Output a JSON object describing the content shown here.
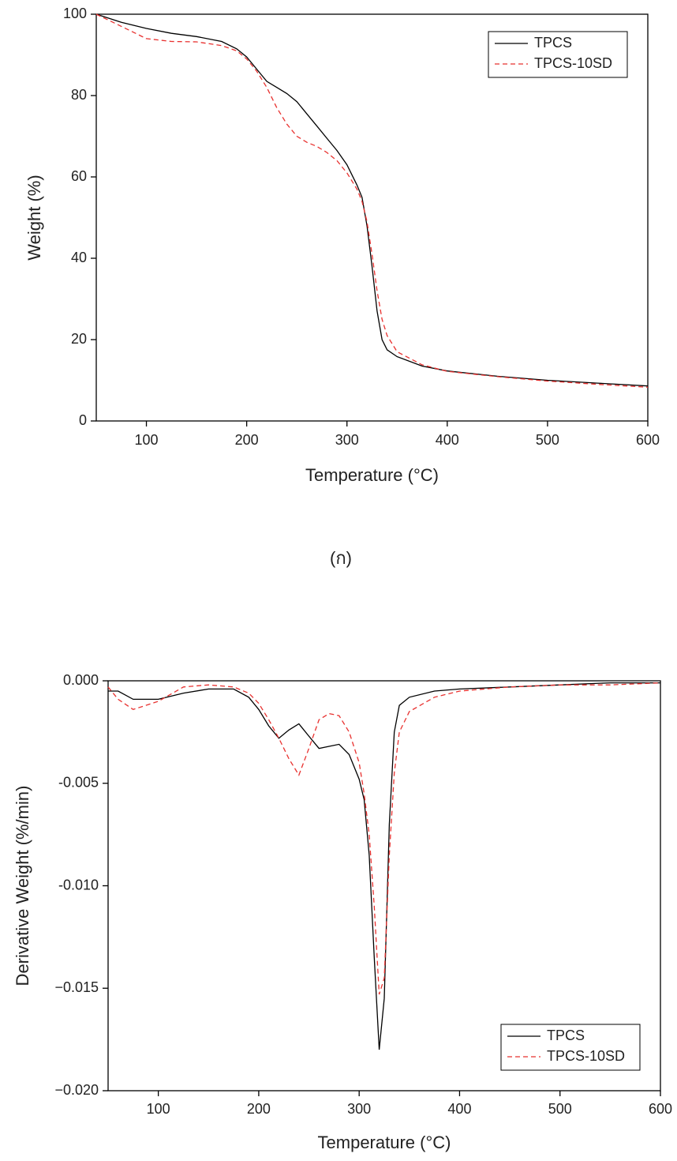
{
  "caption": "(ก)",
  "chart_data": [
    {
      "type": "line",
      "xlabel": "Temperature (°C)",
      "ylabel": "Weight (%)",
      "x": [
        50,
        75,
        100,
        125,
        150,
        175,
        190,
        200,
        210,
        220,
        230,
        240,
        250,
        260,
        270,
        280,
        290,
        300,
        310,
        315,
        320,
        325,
        330,
        335,
        340,
        350,
        375,
        400,
        450,
        500,
        550,
        600
      ],
      "series": [
        {
          "name": "TPCS",
          "color": "#000000",
          "linestyle": "solid",
          "values": [
            100,
            98,
            96.5,
            95.3,
            94.5,
            93.3,
            91.5,
            89.5,
            86.5,
            83.5,
            82,
            80.5,
            78.5,
            75.5,
            72.5,
            69.5,
            66.5,
            63,
            58,
            55,
            48,
            38,
            27,
            20,
            17.5,
            15.8,
            13.5,
            12.3,
            11,
            10,
            9.3,
            8.6
          ]
        },
        {
          "name": "TPCS-10SD",
          "color": "#e8312f",
          "linestyle": "dashed",
          "values": [
            100,
            97,
            94,
            93.3,
            93.2,
            92.3,
            91,
            89,
            86,
            82,
            77,
            73,
            70,
            68.5,
            67.5,
            66,
            64,
            61,
            57,
            54,
            49,
            41,
            32,
            25,
            21,
            17,
            13.8,
            12.2,
            10.9,
            9.8,
            9,
            8.3
          ]
        }
      ],
      "xlim": [
        50,
        600
      ],
      "xticks": [
        100,
        200,
        300,
        400,
        500,
        600
      ],
      "ylim": [
        0,
        100
      ],
      "yticks": [
        0,
        20,
        40,
        60,
        80,
        100
      ],
      "legend": "upper right"
    },
    {
      "type": "line",
      "xlabel": "Temperature (°C)",
      "ylabel": "Derivative Weight (%/min)",
      "x": [
        50,
        60,
        75,
        100,
        125,
        150,
        175,
        190,
        200,
        210,
        220,
        230,
        240,
        250,
        260,
        270,
        280,
        290,
        300,
        305,
        310,
        315,
        320,
        325,
        330,
        335,
        340,
        350,
        375,
        400,
        450,
        500,
        550,
        600
      ],
      "series": [
        {
          "name": "TPCS",
          "color": "#000000",
          "linestyle": "solid",
          "values": [
            -0.0005,
            -0.0005,
            -0.0009,
            -0.0009,
            -0.0006,
            -0.0004,
            -0.0004,
            -0.0008,
            -0.0014,
            -0.0022,
            -0.0028,
            -0.0024,
            -0.0021,
            -0.0027,
            -0.0033,
            -0.0032,
            -0.0031,
            -0.0036,
            -0.0048,
            -0.0058,
            -0.0085,
            -0.0135,
            -0.018,
            -0.0155,
            -0.007,
            -0.0025,
            -0.0012,
            -0.0008,
            -0.0005,
            -0.0004,
            -0.0003,
            -0.0002,
            -0.0001,
            -0.0001
          ]
        },
        {
          "name": "TPCS-10SD",
          "color": "#e8312f",
          "linestyle": "dashed",
          "values": [
            -0.0003,
            -0.0009,
            -0.0014,
            -0.001,
            -0.0003,
            -0.0002,
            -0.0003,
            -0.0006,
            -0.0011,
            -0.0019,
            -0.0028,
            -0.0038,
            -0.0046,
            -0.0033,
            -0.0019,
            -0.0016,
            -0.0017,
            -0.0025,
            -0.004,
            -0.0055,
            -0.0075,
            -0.011,
            -0.0153,
            -0.0145,
            -0.0085,
            -0.0045,
            -0.0025,
            -0.0015,
            -0.0008,
            -0.0005,
            -0.0003,
            -0.0002,
            -0.0002,
            -0.0001
          ]
        }
      ],
      "xlim": [
        50,
        600
      ],
      "xticks": [
        100,
        200,
        300,
        400,
        500,
        600
      ],
      "ylim": [
        -0.02,
        0
      ],
      "yticks": [
        {
          "value": -0.02,
          "label": "−0.020"
        },
        {
          "value": -0.015,
          "label": "−0.015"
        },
        {
          "value": -0.01,
          "label": "-0.010"
        },
        {
          "value": -0.005,
          "label": "-0.005"
        },
        {
          "value": 0,
          "label": "0.000"
        }
      ],
      "legend": "lower right"
    }
  ]
}
